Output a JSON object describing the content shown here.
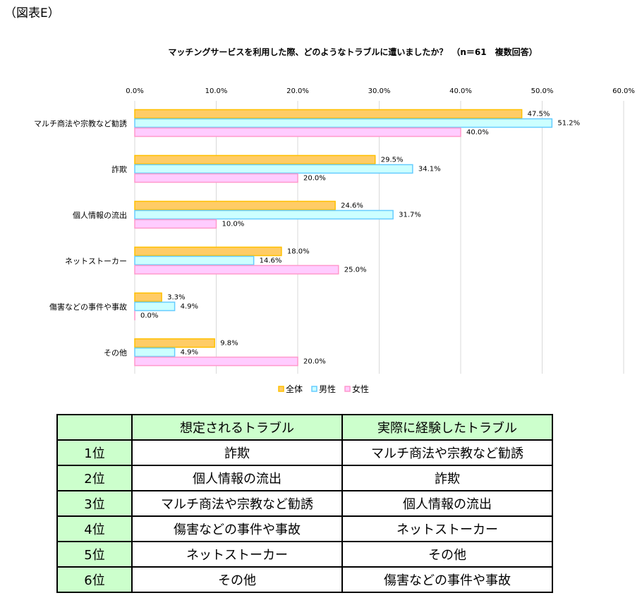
{
  "figure_label": "（図表E）",
  "chart_data": {
    "type": "bar",
    "orientation": "horizontal",
    "title": "マッチングサービスを利用した際、どのようなトラブルに遭いましたか？　（n＝61　複数回答）",
    "categories": [
      "マルチ商法や宗教など勧誘",
      "詐欺",
      "個人情報の流出",
      "ネットストーカー",
      "傷害などの事件や事故",
      "その他"
    ],
    "series": [
      {
        "name": "全体",
        "values": [
          47.5,
          29.5,
          24.6,
          18.0,
          3.3,
          9.8
        ],
        "fill": "#FFCC66",
        "stroke": "#FFC000"
      },
      {
        "name": "男性",
        "values": [
          51.2,
          34.1,
          31.7,
          14.6,
          4.9,
          4.9
        ],
        "fill": "#CCFFFF",
        "stroke": "#66CCFF"
      },
      {
        "name": "女性",
        "values": [
          40.0,
          20.0,
          10.0,
          25.0,
          0.0,
          20.0
        ],
        "fill": "#FFCCFF",
        "stroke": "#FF99CC"
      }
    ],
    "xlim": [
      0,
      60
    ],
    "xticks": [
      "0.0%",
      "10.0%",
      "20.0%",
      "30.0%",
      "40.0%",
      "50.0%",
      "60.0%"
    ],
    "grid": true,
    "legend": "bottom"
  },
  "table": {
    "headers": [
      "",
      "想定されるトラブル",
      "実際に経験したトラブル"
    ],
    "rows": [
      [
        "1位",
        "詐欺",
        "マルチ商法や宗教など勧誘"
      ],
      [
        "2位",
        "個人情報の流出",
        "詐欺"
      ],
      [
        "3位",
        "マルチ商法や宗教など勧誘",
        "個人情報の流出"
      ],
      [
        "4位",
        "傷害などの事件や事故",
        "ネットストーカー"
      ],
      [
        "5位",
        "ネットストーカー",
        "その他"
      ],
      [
        "6位",
        "その他",
        "傷害などの事件や事故"
      ]
    ]
  }
}
